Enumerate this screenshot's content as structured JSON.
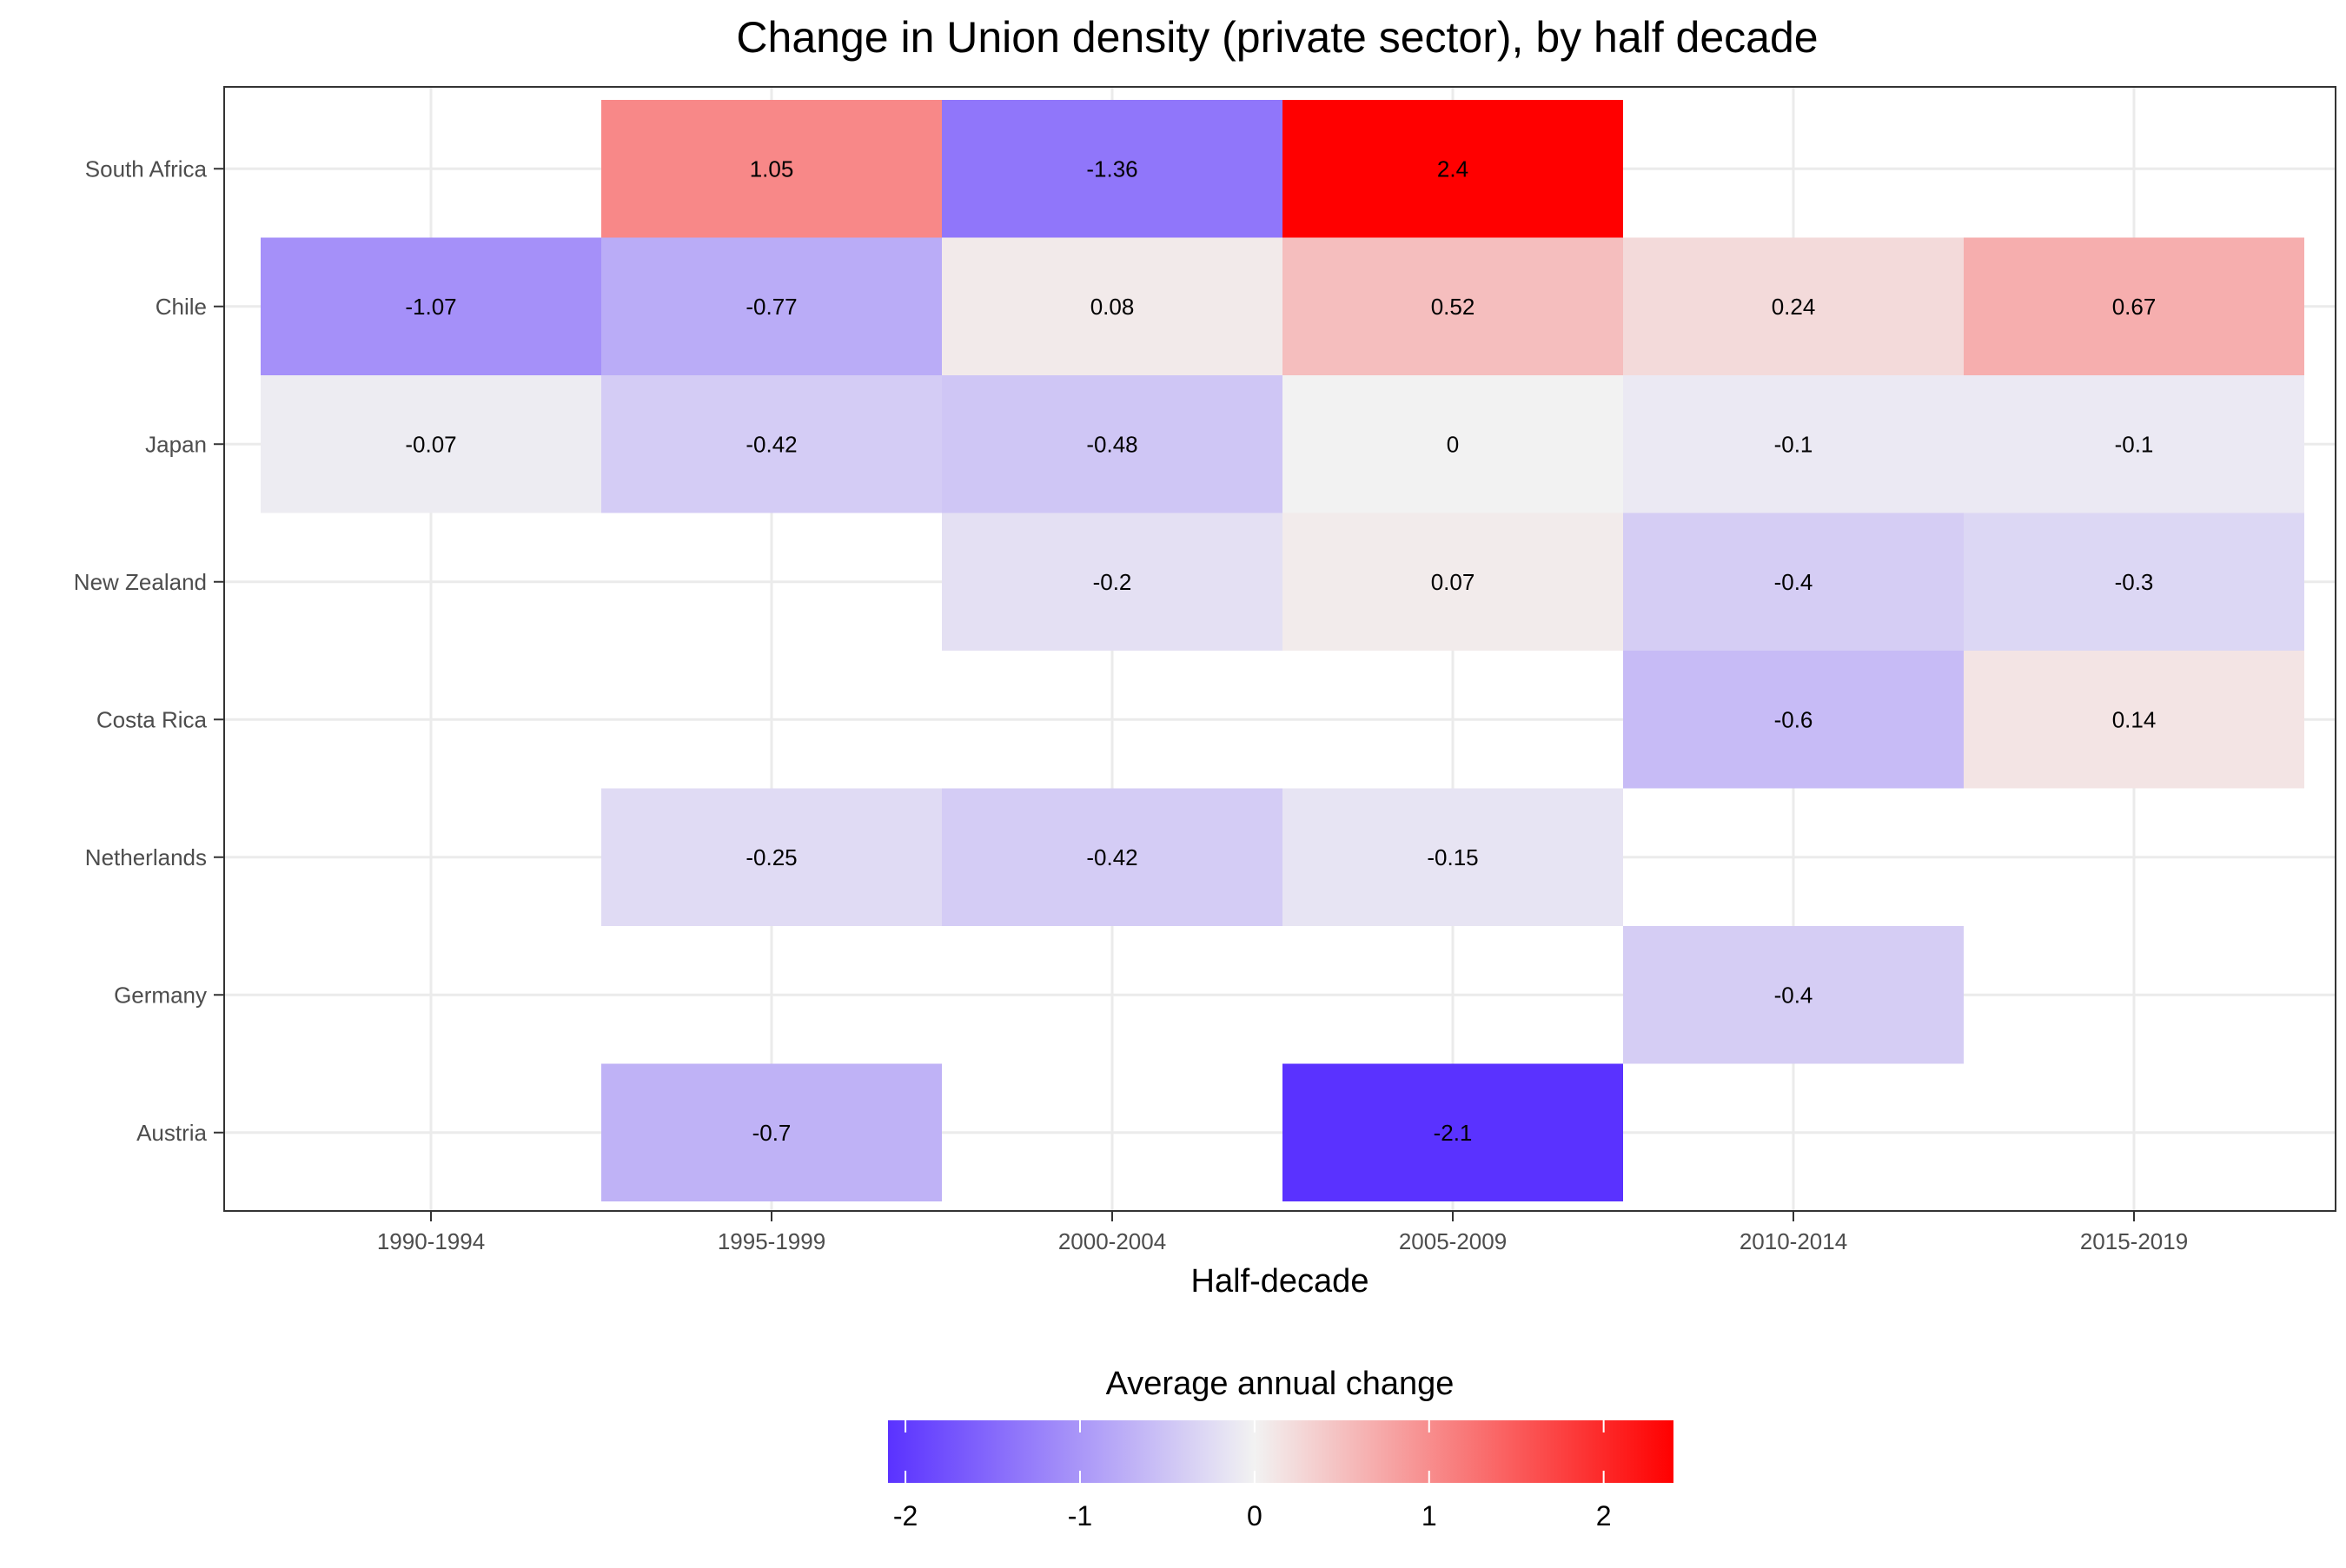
{
  "chart_data": {
    "type": "heatmap",
    "title": "Change in Union density (private sector), by half decade",
    "xlabel": "Half-decade",
    "ylabel": "",
    "x_categories": [
      "1990-1994",
      "1995-1999",
      "2000-2004",
      "2005-2009",
      "2010-2014",
      "2015-2019"
    ],
    "y_categories": [
      "South Africa",
      "Chile",
      "Japan",
      "New Zealand",
      "Costa Rica",
      "Netherlands",
      "Germany",
      "Austria"
    ],
    "cells": [
      {
        "country": "South Africa",
        "period": "1995-1999",
        "value": 1.05,
        "label": "1.05"
      },
      {
        "country": "South Africa",
        "period": "2000-2004",
        "value": -1.36,
        "label": "-1.36"
      },
      {
        "country": "South Africa",
        "period": "2005-2009",
        "value": 2.4,
        "label": "2.4"
      },
      {
        "country": "Chile",
        "period": "1990-1994",
        "value": -1.07,
        "label": "-1.07"
      },
      {
        "country": "Chile",
        "period": "1995-1999",
        "value": -0.77,
        "label": "-0.77"
      },
      {
        "country": "Chile",
        "period": "2000-2004",
        "value": 0.08,
        "label": "0.08"
      },
      {
        "country": "Chile",
        "period": "2005-2009",
        "value": 0.52,
        "label": "0.52"
      },
      {
        "country": "Chile",
        "period": "2010-2014",
        "value": 0.24,
        "label": "0.24"
      },
      {
        "country": "Chile",
        "period": "2015-2019",
        "value": 0.67,
        "label": "0.67"
      },
      {
        "country": "Japan",
        "period": "1990-1994",
        "value": -0.07,
        "label": "-0.07"
      },
      {
        "country": "Japan",
        "period": "1995-1999",
        "value": -0.42,
        "label": "-0.42"
      },
      {
        "country": "Japan",
        "period": "2000-2004",
        "value": -0.48,
        "label": "-0.48"
      },
      {
        "country": "Japan",
        "period": "2005-2009",
        "value": 0,
        "label": "0"
      },
      {
        "country": "Japan",
        "period": "2010-2014",
        "value": -0.1,
        "label": "-0.1"
      },
      {
        "country": "Japan",
        "period": "2015-2019",
        "value": -0.1,
        "label": "-0.1"
      },
      {
        "country": "New Zealand",
        "period": "2000-2004",
        "value": -0.2,
        "label": "-0.2"
      },
      {
        "country": "New Zealand",
        "period": "2005-2009",
        "value": 0.07,
        "label": "0.07"
      },
      {
        "country": "New Zealand",
        "period": "2010-2014",
        "value": -0.4,
        "label": "-0.4"
      },
      {
        "country": "New Zealand",
        "period": "2015-2019",
        "value": -0.3,
        "label": "-0.3"
      },
      {
        "country": "Costa Rica",
        "period": "2010-2014",
        "value": -0.6,
        "label": "-0.6"
      },
      {
        "country": "Costa Rica",
        "period": "2015-2019",
        "value": 0.14,
        "label": "0.14"
      },
      {
        "country": "Netherlands",
        "period": "1995-1999",
        "value": -0.25,
        "label": "-0.25"
      },
      {
        "country": "Netherlands",
        "period": "2000-2004",
        "value": -0.42,
        "label": "-0.42"
      },
      {
        "country": "Netherlands",
        "period": "2005-2009",
        "value": -0.15,
        "label": "-0.15"
      },
      {
        "country": "Germany",
        "period": "2010-2014",
        "value": -0.4,
        "label": "-0.4"
      },
      {
        "country": "Austria",
        "period": "1995-1999",
        "value": -0.7,
        "label": "-0.7"
      },
      {
        "country": "Austria",
        "period": "2005-2009",
        "value": -2.1,
        "label": "-2.1"
      }
    ],
    "legend": {
      "title": "Average annual change",
      "position": "bottom",
      "limits": [
        -2.1,
        2.4
      ],
      "ticks": [
        -2,
        -1,
        0,
        1,
        2
      ],
      "tick_labels": [
        "-2",
        "-1",
        "0",
        "1",
        "2"
      ],
      "low_color": "#5a32ff",
      "mid_color": "#f2f2f2",
      "high_color": "#ff0000"
    },
    "grid": true
  }
}
